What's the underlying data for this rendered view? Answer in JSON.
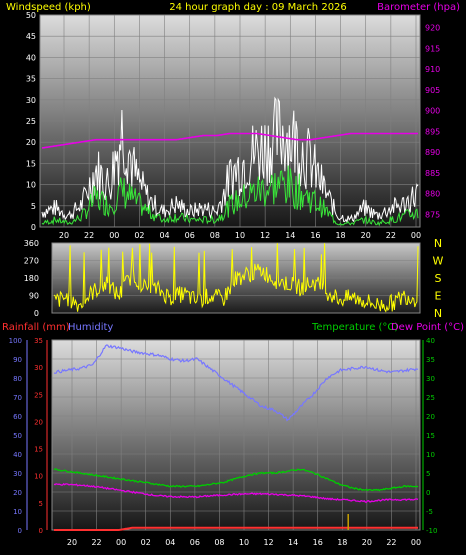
{
  "header": {
    "left": "Windspeed (kph)",
    "center": "24 hour graph day : 09 March 2026",
    "right": "Barometer (hpa)"
  },
  "colors": {
    "bg": "#000000",
    "plot_top": "#d9d9d9",
    "plot_bottom": "#1a1a1a",
    "grid": "#808080",
    "wind_gust": "#ffffff",
    "wind_avg": "#39e639",
    "barometer": "#e600e6",
    "direction": "#ffff00",
    "humidity": "#7777ff",
    "temperature": "#00cc00",
    "dewpoint": "#e600e6",
    "rainfall": "#ff3030",
    "rain_rate": "#c8a000",
    "tick_text": "#ffffff"
  },
  "chart_data": [
    {
      "id": "wind",
      "type": "line",
      "title": "24 hour graph day : 09 March 2026",
      "ylabel": "Windspeed (kph)",
      "ylabel_right": "Barometer (hpa)",
      "ylim": [
        0,
        50
      ],
      "y_ticks": [
        "0",
        "5",
        "10",
        "15",
        "20",
        "25",
        "30",
        "35",
        "40",
        "45",
        "50"
      ],
      "y2lim": [
        872,
        923
      ],
      "y2_ticks": [
        "875",
        "880",
        "885",
        "890",
        "895",
        "900",
        "905",
        "910",
        "915",
        "920"
      ],
      "x_ticks": [
        "20",
        "22",
        "00",
        "02",
        "04",
        "06",
        "08",
        "10",
        "12",
        "14",
        "16",
        "18",
        "20",
        "22",
        "00"
      ],
      "x": [
        0,
        1,
        2,
        3,
        4,
        5,
        6,
        7,
        8,
        9,
        10,
        11,
        12,
        13,
        14,
        15,
        16,
        17,
        18,
        19,
        20,
        21,
        22,
        23,
        24,
        25,
        26,
        27,
        28
      ],
      "series": [
        {
          "key": "gust",
          "values": [
            4,
            5,
            3,
            6,
            15,
            11,
            26,
            13,
            7,
            4,
            6,
            4,
            5,
            4,
            13,
            17,
            20,
            22,
            25,
            22,
            17,
            10,
            3,
            2,
            5,
            3,
            5,
            6,
            9
          ]
        },
        {
          "key": "avg",
          "values": [
            1,
            2,
            1,
            3,
            8,
            6,
            10,
            7,
            4,
            2,
            3,
            2,
            2,
            2,
            6,
            8,
            10,
            11,
            12,
            10,
            8,
            5,
            1,
            1,
            2,
            1,
            2,
            3,
            4
          ]
        },
        {
          "key": "barometer",
          "values": [
            891,
            891.5,
            892,
            892.5,
            893,
            893,
            893,
            893,
            893,
            893,
            893,
            893.5,
            894,
            894,
            894.5,
            894.5,
            894.5,
            894,
            893.5,
            893,
            893,
            893.5,
            894,
            894.5,
            894.5,
            894.5,
            894.5,
            894.5,
            894.5
          ]
        }
      ],
      "grid": true
    },
    {
      "id": "direction",
      "type": "line",
      "ylim": [
        0,
        360
      ],
      "y_ticks": [
        "0",
        "90",
        "180",
        "270",
        "360"
      ],
      "compass": [
        "N",
        "W",
        "S",
        "E",
        "N"
      ],
      "series": [
        {
          "key": "direction",
          "values": [
            60,
            80,
            40,
            110,
            150,
            90,
            200,
            130,
            120,
            80,
            100,
            60,
            90,
            70,
            180,
            200,
            220,
            170,
            150,
            130,
            160,
            110,
            70,
            80,
            60,
            40,
            50,
            90,
            70
          ]
        }
      ],
      "grid": true
    },
    {
      "id": "temp",
      "type": "line",
      "ylabel_left1": "Rainfall (mm)",
      "ylabel_left2": "Humidity",
      "ylabel_right1": "Temperature (°C)",
      "ylabel_right2": "Dew Point (°C)",
      "humidity_ticks": [
        "100",
        "90",
        "80",
        "70",
        "60",
        "50",
        "40",
        "30",
        "20",
        "10",
        "0"
      ],
      "rainfall_ticks": [
        "35",
        "30",
        "25",
        "20",
        "15",
        "10",
        "5",
        "0"
      ],
      "temp_ticks": [
        "40",
        "35",
        "30",
        "25",
        "20",
        "15",
        "10",
        "5",
        "0",
        "-5",
        "-10"
      ],
      "humidity_lim": [
        0,
        100
      ],
      "rain_lim": [
        0,
        35
      ],
      "temp_lim": [
        -10,
        40
      ],
      "x_ticks": [
        "20",
        "22",
        "00",
        "02",
        "04",
        "06",
        "08",
        "10",
        "12",
        "14",
        "16",
        "18",
        "20",
        "22",
        "00"
      ],
      "series": [
        {
          "key": "humidity",
          "values": [
            83,
            84,
            85,
            87,
            97,
            96,
            94,
            93,
            92,
            90,
            89,
            90,
            85,
            80,
            75,
            70,
            65,
            63,
            58,
            65,
            72,
            80,
            84,
            85,
            86,
            84,
            83,
            84,
            85
          ]
        },
        {
          "key": "temperature",
          "values": [
            6,
            5.5,
            5,
            4.5,
            4,
            3.5,
            3,
            2.5,
            2,
            1.5,
            1.5,
            1.5,
            2,
            2.5,
            3.5,
            4.5,
            5,
            5,
            5.5,
            6,
            5,
            3.5,
            2,
            1,
            0.5,
            0.5,
            1,
            1.5,
            1.5
          ]
        },
        {
          "key": "dewpoint",
          "values": [
            2,
            2,
            1.8,
            1.5,
            1,
            0.5,
            0,
            -0.5,
            -1,
            -1.2,
            -1.3,
            -1.3,
            -1,
            -0.8,
            -0.6,
            -0.5,
            -0.5,
            -0.6,
            -0.8,
            -1,
            -1.3,
            -1.8,
            -2,
            -2.2,
            -2.5,
            -2.2,
            -2,
            -2,
            -2
          ]
        },
        {
          "key": "rainfall",
          "values": [
            0,
            0,
            0,
            0,
            0,
            0,
            0.4,
            0.4,
            0.4,
            0.4,
            0.4,
            0.4,
            0.4,
            0.4,
            0.4,
            0.4,
            0.4,
            0.4,
            0.4,
            0.4,
            0.4,
            0.4,
            0.4,
            0.4,
            0.4,
            0.4,
            0.4,
            0.4,
            0.4
          ]
        }
      ],
      "grid": true
    }
  ]
}
